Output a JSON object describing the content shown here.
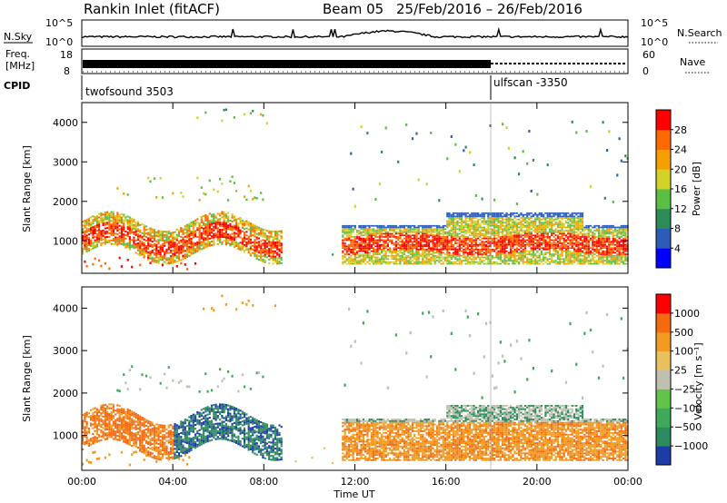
{
  "header": {
    "station": "Rankin Inlet (fitACF)",
    "beam": "Beam 05",
    "date_range": "25/Feb/2016 – 26/Feb/2016"
  },
  "top_panels": {
    "nsky_label": "N.Sky",
    "nsky_ticks": [
      "10^5",
      "10^0"
    ],
    "nsearch_label": "N.Search",
    "nsearch_ticks": [
      "10^5",
      "10^0"
    ],
    "freq_label": "Freq.",
    "freq_unit": "[MHz]",
    "freq_ticks": [
      "18",
      "8"
    ],
    "nave_label": "Nave",
    "nave_ticks": [
      "60",
      "0"
    ],
    "cpid_label": "CPID",
    "cpid_segments": [
      {
        "name": "twofsound 3503",
        "start_hour": 0,
        "end_hour": 18
      },
      {
        "name": "ulfscan -3350",
        "start_hour": 18,
        "end_hour": 24
      }
    ]
  },
  "chart_data": [
    {
      "type": "heatmap",
      "title": "",
      "ylabel": "Slant Range [km]",
      "xlabel": "",
      "ylim": [
        180,
        4500
      ],
      "xlim": [
        0,
        24
      ],
      "y_ticks": [
        "1000",
        "2000",
        "3000",
        "4000"
      ],
      "colorbar_label": "Power [dB]",
      "colorbar_ticks": [
        "4",
        "8",
        "12",
        "16",
        "20",
        "24",
        "28"
      ],
      "colorbar_colors": [
        "#0000ff",
        "#2c5cb8",
        "#2e8b57",
        "#5bbf45",
        "#d2d228",
        "#f5a000",
        "#ff6a00",
        "#ff0000"
      ]
    },
    {
      "type": "heatmap",
      "title": "",
      "ylabel": "Slant Range [km]",
      "xlabel": "Time UT",
      "ylim": [
        180,
        4500
      ],
      "xlim": [
        0,
        24
      ],
      "y_ticks": [
        "1000",
        "2000",
        "3000",
        "4000"
      ],
      "x_ticks": [
        "00:00",
        "04:00",
        "08:00",
        "12:00",
        "16:00",
        "20:00",
        "00:00"
      ],
      "colorbar_label": "Velocity [m s⁻¹]",
      "colorbar_ticks": [
        "1000",
        "500",
        "100",
        "25",
        "−25",
        "−100",
        "−500",
        "−1000"
      ],
      "colorbar_colors": [
        "#1e3ca8",
        "#2d8a5e",
        "#3fa85a",
        "#63c24a",
        "#c0c0b0",
        "#e8c060",
        "#f39a20",
        "#f56a10",
        "#ff0000"
      ]
    }
  ]
}
